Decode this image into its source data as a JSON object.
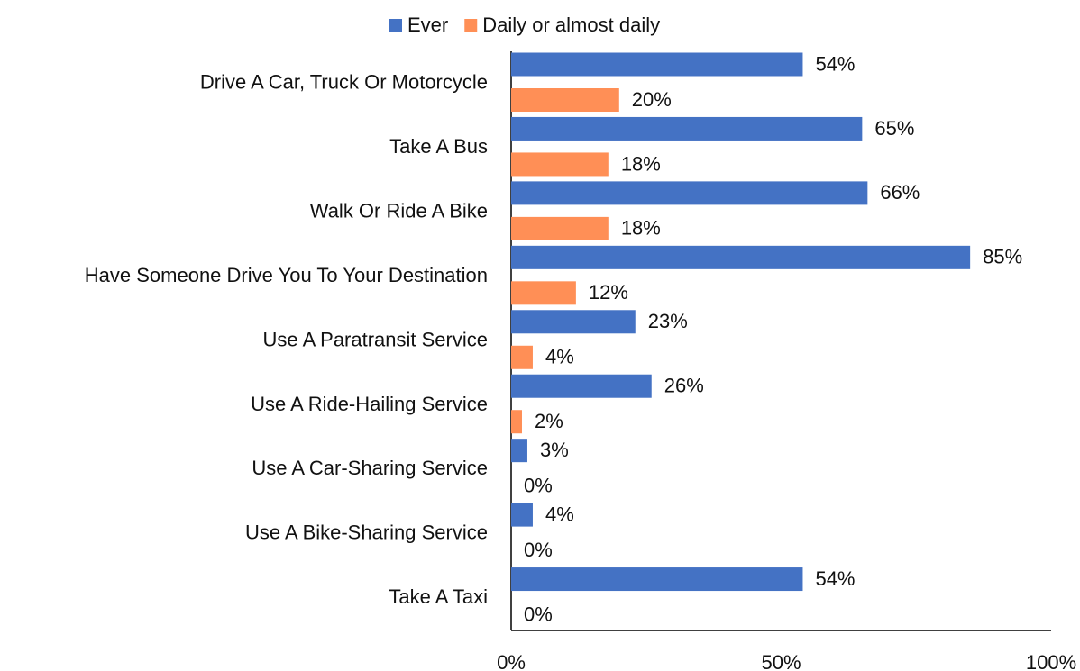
{
  "chart_data": {
    "type": "bar",
    "orientation": "horizontal",
    "legend": "top",
    "categories": [
      "Drive A Car, Truck Or Motorcycle",
      "Take A Bus",
      "Walk Or Ride A Bike",
      "Have Someone Drive You To Your Destination",
      "Use A Paratransit Service",
      "Use A Ride-Hailing Service",
      "Use A Car-Sharing Service",
      "Use A Bike-Sharing Service",
      "Take A Taxi"
    ],
    "series": [
      {
        "name": "Ever",
        "color": "#4472c4",
        "values": [
          54,
          65,
          66,
          85,
          23,
          26,
          3,
          4,
          54
        ],
        "value_labels": [
          "54%",
          "65%",
          "66%",
          "85%",
          "23%",
          "26%",
          "3%",
          "4%",
          "54%"
        ]
      },
      {
        "name": "Daily or almost daily",
        "color": "#ff8f56",
        "values": [
          20,
          18,
          18,
          12,
          4,
          2,
          0,
          0,
          0
        ],
        "value_labels": [
          "20%",
          "18%",
          "18%",
          "12%",
          "4%",
          "2%",
          "0%",
          "0%",
          "0%"
        ]
      }
    ],
    "xlim": [
      0,
      100
    ],
    "xticks": [
      {
        "value": 0,
        "label": "0%"
      },
      {
        "value": 50,
        "label": "50%"
      },
      {
        "value": 100,
        "label": "100%"
      }
    ]
  }
}
